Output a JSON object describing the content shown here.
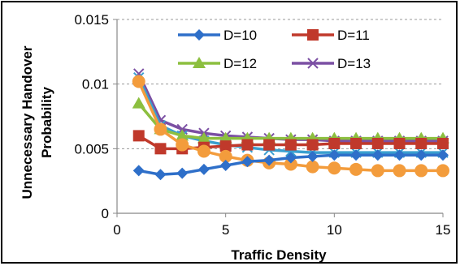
{
  "chart_data": {
    "type": "line",
    "xlabel": "Traffic Density",
    "ylabel_lines": [
      "Unnecessary Handover",
      "Probability"
    ],
    "xlim": [
      0,
      15
    ],
    "ylim": [
      0,
      0.015
    ],
    "x_ticks": [
      "0",
      "5",
      "10",
      "15"
    ],
    "y_ticks": [
      "0",
      "0.005",
      "0.01",
      "0.015"
    ],
    "grid": "horizontal dashed",
    "legend_position": "top-right",
    "x": [
      1,
      2,
      3,
      4,
      5,
      6,
      7,
      8,
      9,
      10,
      11,
      12,
      13,
      14,
      15
    ],
    "series": [
      {
        "name": "D=10",
        "color": "#2e6fc9",
        "marker": "diamond",
        "values": [
          0.0033,
          0.003,
          0.0031,
          0.0034,
          0.0037,
          0.004,
          0.0041,
          0.0043,
          0.0044,
          0.0045,
          0.0045,
          0.0045,
          0.0045,
          0.0045,
          0.0045
        ]
      },
      {
        "name": "D=11",
        "color": "#c0392b",
        "marker": "square",
        "values": [
          0.006,
          0.005,
          0.005,
          0.0051,
          0.0052,
          0.0053,
          0.0053,
          0.0053,
          0.0053,
          0.0054,
          0.0054,
          0.0054,
          0.0054,
          0.0054,
          0.0054
        ]
      },
      {
        "name": "D=12",
        "color": "#8cbf3f",
        "marker": "triangle",
        "values": [
          0.0085,
          0.0065,
          0.006,
          0.0058,
          0.0058,
          0.0058,
          0.0058,
          0.0058,
          0.0058,
          0.0058,
          0.0058,
          0.0058,
          0.0058,
          0.0058,
          0.0058
        ]
      },
      {
        "name": "D=13",
        "color": "#7b4fa3",
        "marker": "x",
        "values": [
          0.0108,
          0.0072,
          0.0065,
          0.0062,
          0.006,
          0.0059,
          0.0058,
          0.0057,
          0.0057,
          0.0056,
          0.0056,
          0.0056,
          0.0056,
          0.0056,
          0.0056
        ]
      },
      {
        "name": "",
        "color": "#3a9fcf",
        "marker": "x",
        "values": [
          0.0105,
          0.0068,
          0.006,
          0.0056,
          0.0053,
          0.0051,
          0.0049,
          0.0048,
          0.0047,
          0.0047,
          0.0047,
          0.0047,
          0.0047,
          0.0047,
          0.0047
        ]
      },
      {
        "name": "",
        "color": "#f39c3c",
        "marker": "circle",
        "values": [
          0.0102,
          0.0065,
          0.0053,
          0.0048,
          0.0044,
          0.0041,
          0.0039,
          0.0038,
          0.0036,
          0.0035,
          0.0034,
          0.0033,
          0.0033,
          0.0033,
          0.0033
        ]
      }
    ]
  }
}
